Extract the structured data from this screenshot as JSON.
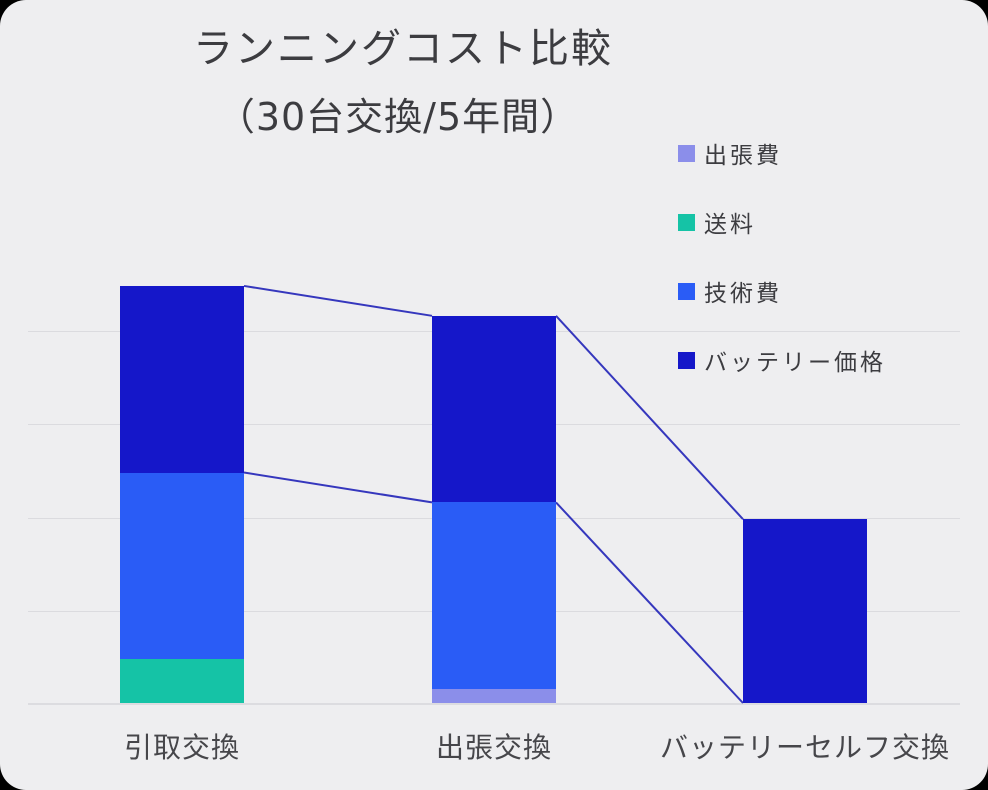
{
  "title": {
    "line1": "ランニングコスト比較",
    "line2": "（30台交換/5年間）"
  },
  "chart_data": {
    "type": "bar",
    "stacked": true,
    "title": "ランニングコスト比較",
    "subtitle": "（30台交換/5年間）",
    "categories": [
      "引取交換",
      "出張交換",
      "バッテリーセルフ交換"
    ],
    "series": [
      {
        "name": "出張費",
        "color": "#8b8eea",
        "values": [
          0,
          0.15,
          0
        ]
      },
      {
        "name": "送料",
        "color": "#15c3a6",
        "values": [
          0.47,
          0,
          0
        ]
      },
      {
        "name": "技術費",
        "color": "#2a5cf6",
        "values": [
          2.0,
          2.0,
          0
        ]
      },
      {
        "name": "バッテリー価格",
        "color": "#1517c9",
        "values": [
          2.0,
          2.0,
          1.97
        ]
      }
    ],
    "value_axis": {
      "tick_labels_visible": false,
      "gridline_count": 4,
      "ylim": [
        0,
        4.5
      ],
      "note": "values estimated in gridline units; no numeric labels shown"
    },
    "legend_position": "right",
    "connector_series": [
      "バッテリー価格",
      "技術費"
    ],
    "connector_line_color": "#3537bd",
    "background_color": "#eeeef0"
  }
}
